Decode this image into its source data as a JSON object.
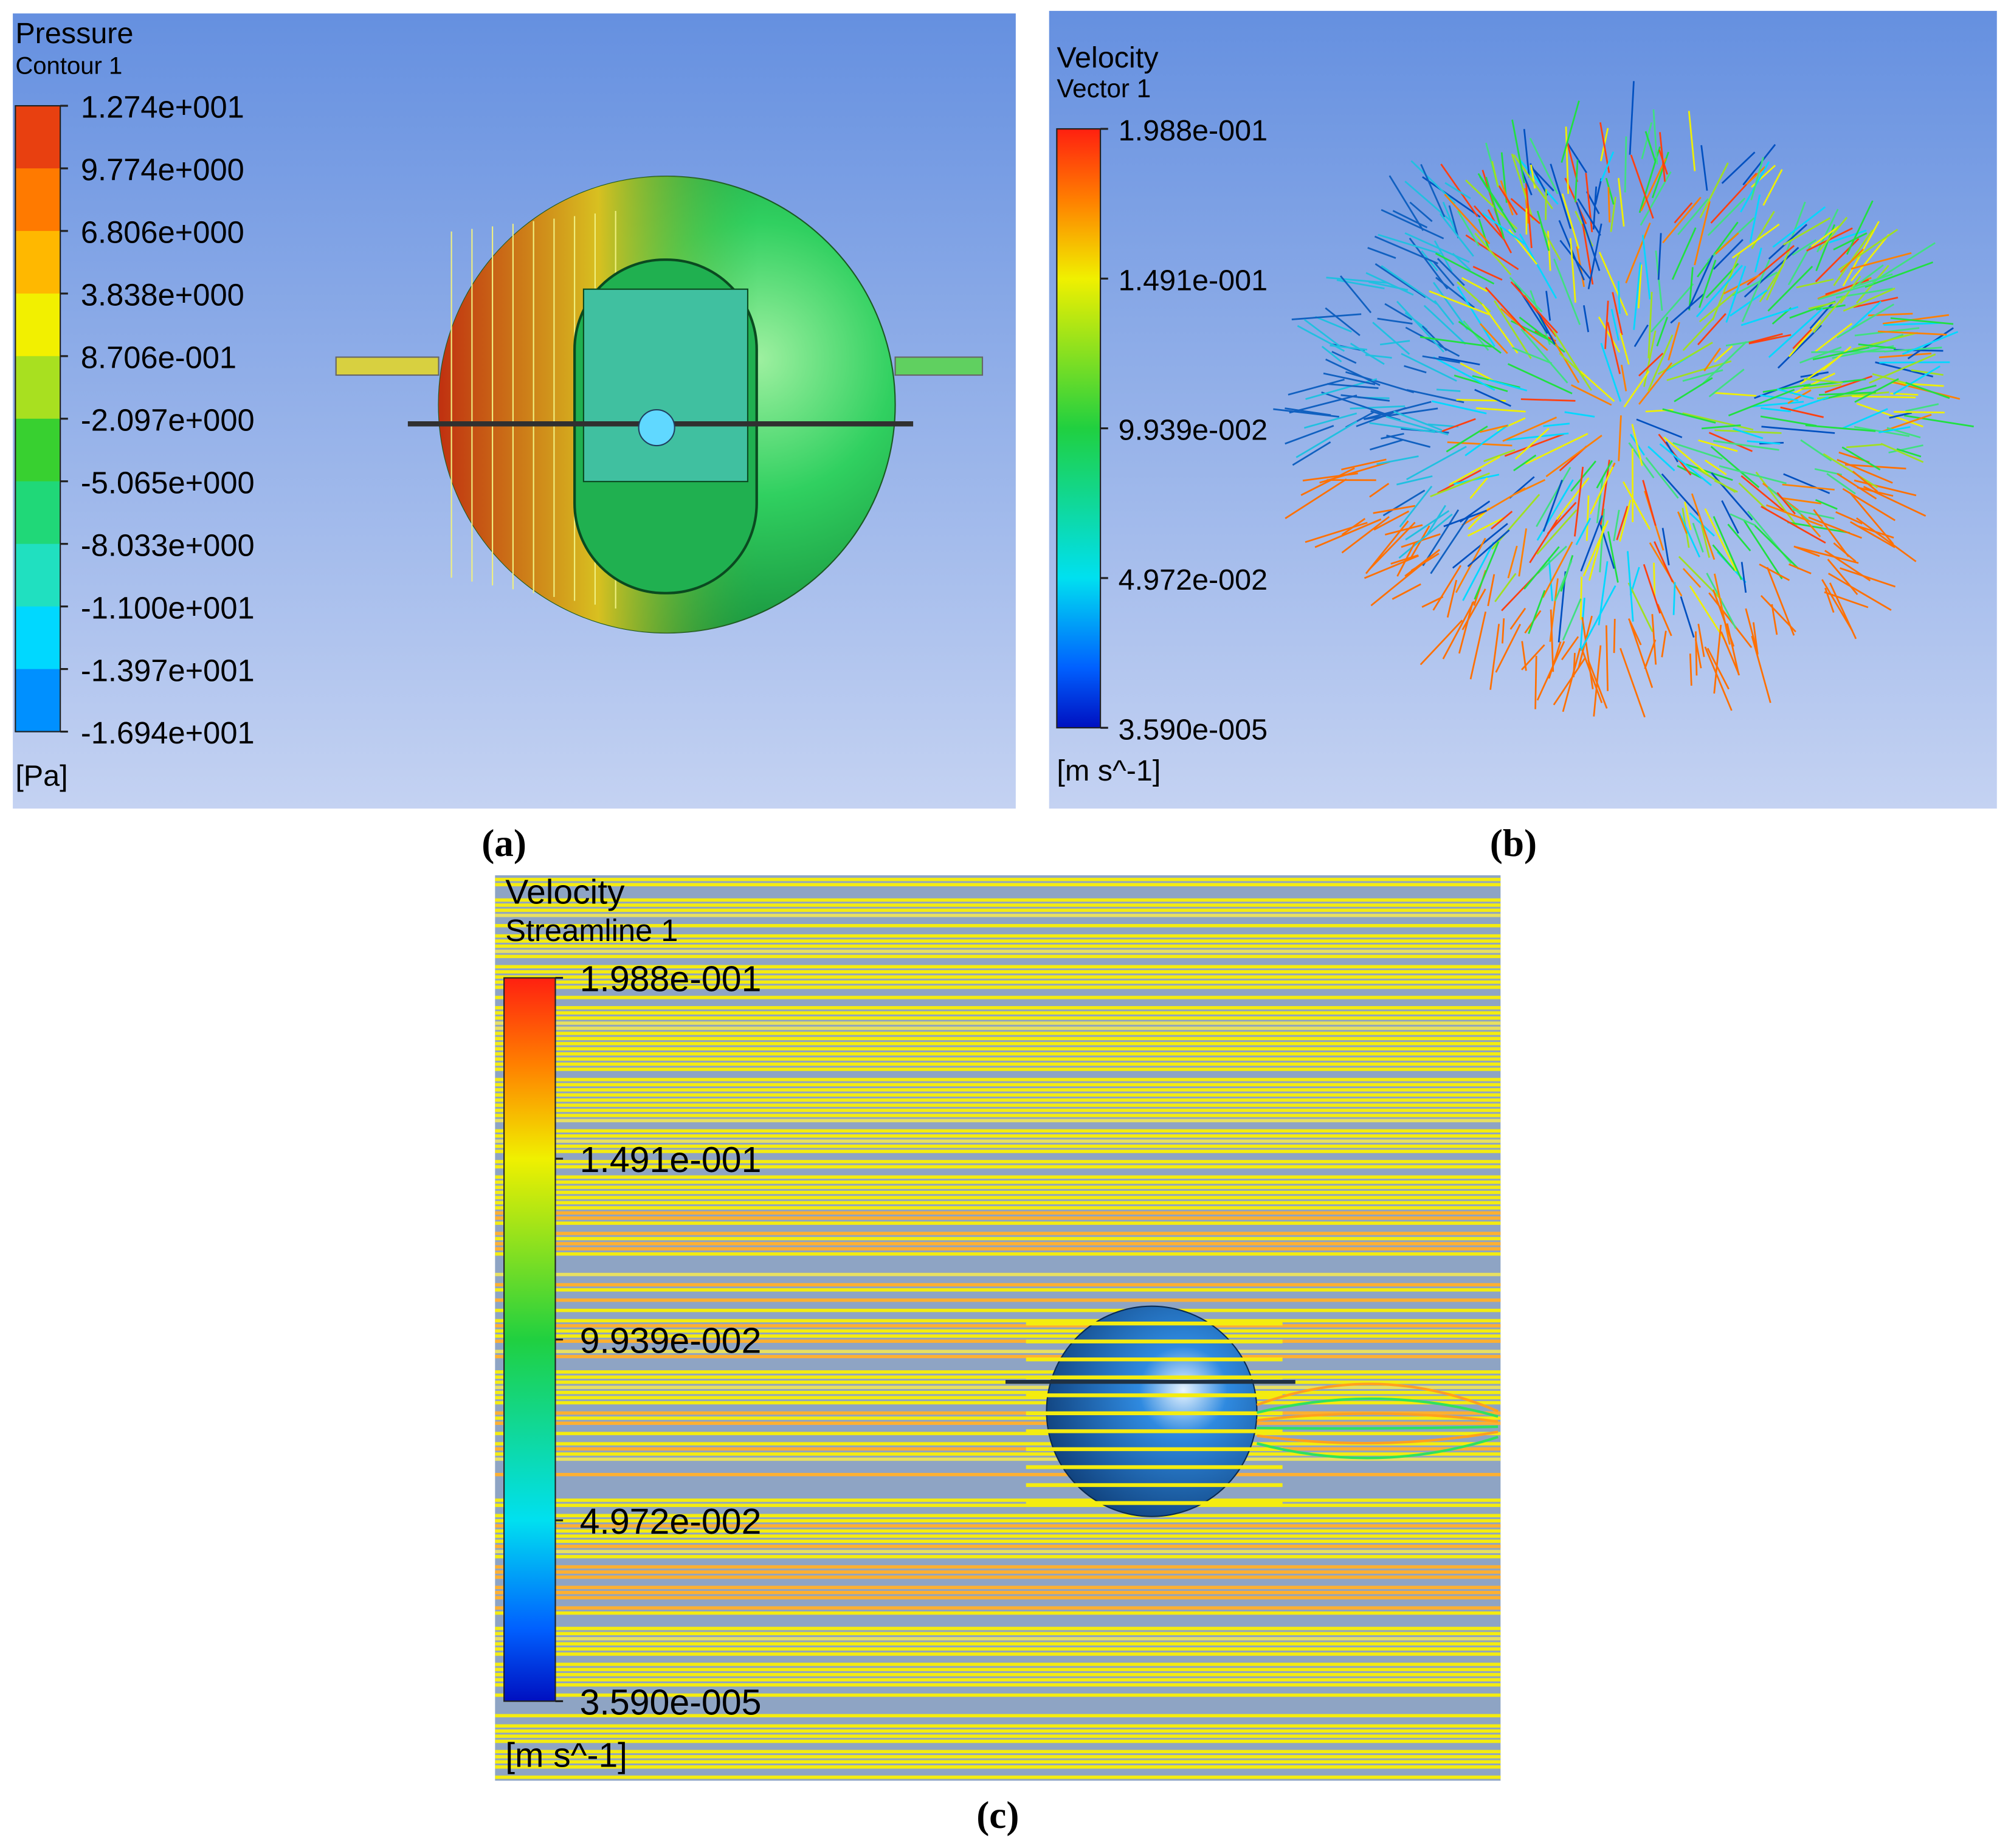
{
  "panels": [
    {
      "title": "Pressure",
      "subtitle": "Contour 1",
      "labels": [
        "1.274e+001",
        "9.774e+000",
        "6.806e+000",
        "3.838e+000",
        "8.706e-001",
        "-2.097e+000",
        "-5.065e+000",
        "-8.033e+000",
        "-1.100e+001",
        "-1.397e+001",
        "-1.694e+001"
      ],
      "unit": "[Pa]",
      "caption": "(a)"
    },
    {
      "title": "Velocity",
      "subtitle": "Vector 1",
      "labels": [
        "1.988e-001",
        "1.491e-001",
        "9.939e-002",
        "4.972e-002",
        "3.590e-005"
      ],
      "unit": "[m s^-1]",
      "caption": "(b)"
    },
    {
      "title": "Velocity",
      "subtitle": "Streamline 1",
      "labels": [
        "1.988e-001",
        "1.491e-001",
        "9.939e-002",
        "4.972e-002",
        "3.590e-005"
      ],
      "unit": "[m s^-1]",
      "caption": "(c)"
    }
  ]
}
